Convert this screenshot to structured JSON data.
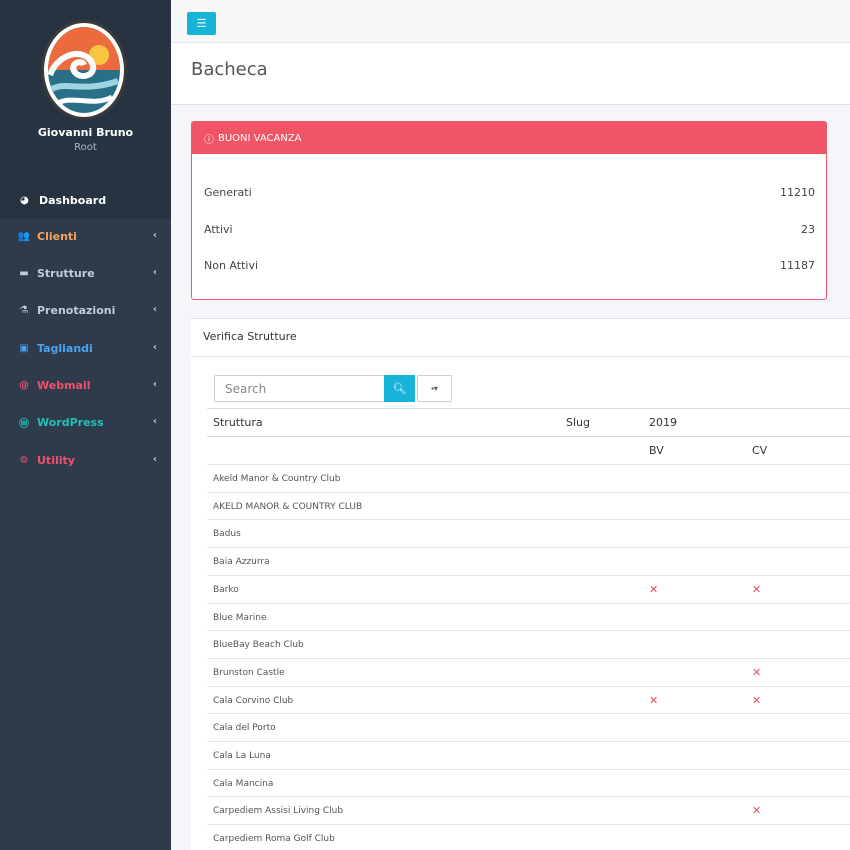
{
  "user": {
    "name": "Giovanni Bruno",
    "role": "Root"
  },
  "menu_toggle_icon": "bars-icon",
  "nav": [
    {
      "label": "Dashboard",
      "icon": "dashboard-icon",
      "color": "#ffffff"
    },
    {
      "label": "Clienti",
      "icon": "users-icon",
      "color": "#f5a25d"
    },
    {
      "label": "Strutture",
      "icon": "bed-icon",
      "color": "#c3cbd4"
    },
    {
      "label": "Prenotazioni",
      "icon": "flask-icon",
      "color": "#c3cbd4"
    },
    {
      "label": "Tagliandi",
      "icon": "id-card-icon",
      "color": "#4aa3f0"
    },
    {
      "label": "Webmail",
      "icon": "at-icon",
      "color": "#f0506e"
    },
    {
      "label": "WordPress",
      "icon": "wordpress-icon",
      "color": "#21c1b6"
    },
    {
      "label": "Utility",
      "icon": "cogs-icon",
      "color": "#f0506e"
    }
  ],
  "page_title": "Bacheca",
  "buoni": {
    "title": "BUONI VACANZA",
    "rows": [
      {
        "label": "Generati",
        "value": "11210"
      },
      {
        "label": "Attivi",
        "value": "23"
      },
      {
        "label": "Non Attivi",
        "value": "11187"
      }
    ]
  },
  "verifica": {
    "title": "Verifica Strutture",
    "search_placeholder": "Search",
    "columns": {
      "struttura": "Struttura",
      "slug": "Slug",
      "year": "2019",
      "bv": "BV",
      "cv": "CV"
    },
    "rows": [
      {
        "name": "Akeld Manor & Country Club",
        "bv": false,
        "cv": false
      },
      {
        "name": "AKELD MANOR & COUNTRY CLUB",
        "bv": false,
        "cv": false
      },
      {
        "name": "Badus",
        "bv": false,
        "cv": false
      },
      {
        "name": "Baia Azzurra",
        "bv": false,
        "cv": false
      },
      {
        "name": "Barko",
        "bv": true,
        "cv": true
      },
      {
        "name": "Blue Marine",
        "bv": false,
        "cv": false
      },
      {
        "name": "BlueBay Beach Club",
        "bv": false,
        "cv": false
      },
      {
        "name": "Brunston Castle",
        "bv": false,
        "cv": true
      },
      {
        "name": "Cala Corvino Club",
        "bv": true,
        "cv": true
      },
      {
        "name": "Cala del Porto",
        "bv": false,
        "cv": false
      },
      {
        "name": "Cala La Luna",
        "bv": false,
        "cv": false
      },
      {
        "name": "Cala Mancina",
        "bv": false,
        "cv": false
      },
      {
        "name": "Carpediem Assisi Living Club",
        "bv": false,
        "cv": true
      },
      {
        "name": "Carpediem Roma Golf Club",
        "bv": false,
        "cv": false
      }
    ]
  }
}
